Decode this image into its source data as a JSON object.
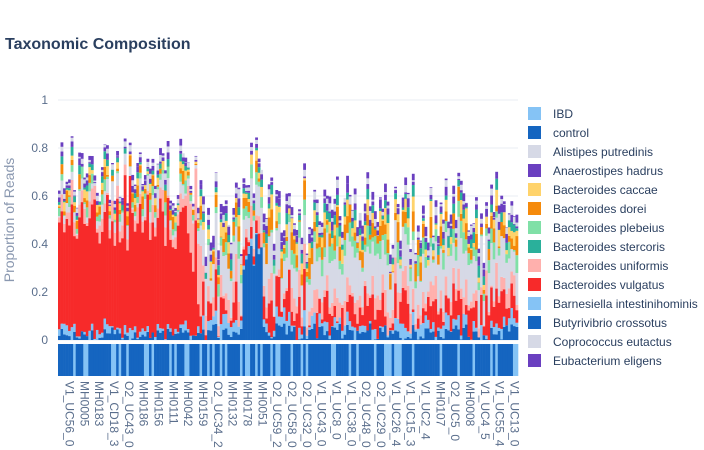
{
  "chart_data": {
    "type": "bar",
    "title": "Taxonomic Composition",
    "ylabel": "Proportion of Reads",
    "xlabel": "",
    "ylim": [
      0,
      1
    ],
    "yticks": [
      "0",
      "0.2",
      "0.4",
      "0.6",
      "0.8",
      "1"
    ],
    "xtick_labels": [
      "V1_UC56_0",
      "MH0005",
      "MH0183",
      "V1_CD18_3",
      "O2_UC43_0",
      "MH0186",
      "MH0156",
      "MH0111",
      "MH0042",
      "MH0159",
      "O2_UC34_2",
      "MH0132",
      "MH0178",
      "MH0051",
      "O2_UC59_2",
      "O2_UC58_0",
      "O2_UC32_0",
      "V1_UC43_0",
      "V1_UC8_0",
      "V1_UC38_0",
      "O2_UC48_0",
      "O2_UC29_0",
      "V1_UC26_4",
      "V1_UC15_3",
      "V1_UC2_4",
      "MH0107",
      "O2_UC5_0",
      "MH0008",
      "V1_UC4_5",
      "V1_UC55_4",
      "V1_UC13_0"
    ],
    "n_samples": 182,
    "grid": true,
    "legend_position": "right",
    "group_legend": [
      {
        "name": "IBD",
        "color": "#85c3f5"
      },
      {
        "name": "control",
        "color": "#1565c0"
      }
    ],
    "series": [
      {
        "name": "Alistipes putredinis",
        "color": "#d6d9e6",
        "mean": 0.06,
        "spread": 0.05
      },
      {
        "name": "Anaerostipes hadrus",
        "color": "#6a3fc0",
        "mean": 0.02,
        "spread": 0.02
      },
      {
        "name": "Bacteroides caccae",
        "color": "#ffd36b",
        "mean": 0.03,
        "spread": 0.04
      },
      {
        "name": "Bacteroides dorei",
        "color": "#f58a0b",
        "mean": 0.04,
        "spread": 0.05
      },
      {
        "name": "Bacteroides plebeius",
        "color": "#80e0a7",
        "mean": 0.04,
        "spread": 0.05
      },
      {
        "name": "Bacteroides stercoris",
        "color": "#2ab09b",
        "mean": 0.02,
        "spread": 0.03
      },
      {
        "name": "Bacteroides uniformis",
        "color": "#ffb0ad",
        "mean": 0.06,
        "spread": 0.06
      },
      {
        "name": "Bacteroides vulgatus",
        "color": "#f72a2a",
        "mean": 0.08,
        "spread": 0.1
      },
      {
        "name": "Barnesiella intestinihominis",
        "color": "#85c3f5",
        "mean": 0.03,
        "spread": 0.04
      },
      {
        "name": "Butyrivibrio crossotus",
        "color": "#1565c0",
        "mean": 0.03,
        "spread": 0.04
      },
      {
        "name": "Coprococcus eutactus",
        "color": "#d6d9e6",
        "mean": 0.02,
        "spread": 0.02
      },
      {
        "name": "Eubacterium eligens",
        "color": "#6a3fc0",
        "mean": 0.02,
        "spread": 0.02
      }
    ],
    "regions": [
      {
        "from": 0.0,
        "to": 0.3,
        "dominant": "Bacteroides vulgatus",
        "level": 0.68
      },
      {
        "from": 0.28,
        "to": 0.31,
        "dominant": "Bacteroides uniformis",
        "level": 0.35
      },
      {
        "from": 0.4,
        "to": 0.44,
        "dominant": "Butyrivibrio crossotus",
        "level": 0.6
      },
      {
        "from": 0.31,
        "to": 1.0,
        "dominant": "Alistipes putredinis",
        "level": 0.1
      }
    ],
    "group_pattern": "mostly control, interspersed IBD"
  }
}
